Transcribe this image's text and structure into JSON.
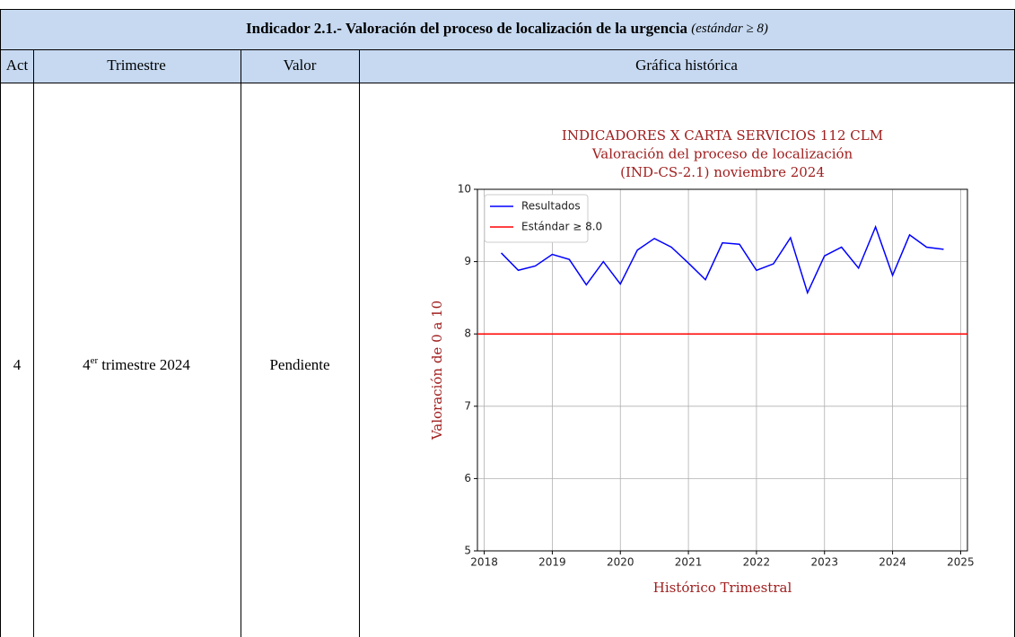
{
  "table": {
    "title": "Indicador 2.1.- Valoración del proceso de localización de la urgencia",
    "title_note": "(estándar ≥ 8)",
    "headers": [
      "Act",
      "Trimestre",
      "Valor",
      "Gráfica histórica"
    ],
    "row": {
      "act": "4",
      "quarter_num": "4",
      "quarter_sup": "er",
      "quarter_rest": "trimestre 2024",
      "valor": "Pendiente"
    }
  },
  "chart_data": {
    "type": "line",
    "title": [
      "INDICADORES X CARTA SERVICIOS 112 CLM",
      "Valoración del proceso de localización",
      "(IND-CS-2.1) noviembre 2024"
    ],
    "xlabel": "Histórico Trimestral",
    "ylabel": "Valoración de 0 a 10",
    "x": [
      2018.25,
      2018.5,
      2018.75,
      2019,
      2019.25,
      2019.5,
      2019.75,
      2020,
      2020.25,
      2020.5,
      2020.75,
      2021,
      2021.25,
      2021.5,
      2021.75,
      2022,
      2022.25,
      2022.5,
      2022.75,
      2023,
      2023.25,
      2023.5,
      2023.75,
      2024,
      2024.25,
      2024.5,
      2024.75
    ],
    "series": [
      {
        "name": "Resultados",
        "color": "#0000ff",
        "values": [
          9.12,
          8.88,
          8.94,
          9.1,
          9.03,
          8.68,
          9.0,
          8.69,
          9.16,
          9.32,
          9.2,
          8.98,
          8.75,
          9.26,
          9.24,
          8.88,
          8.97,
          9.33,
          8.57,
          9.08,
          9.2,
          8.91,
          9.48,
          8.81,
          9.37,
          9.2,
          9.17
        ]
      }
    ],
    "standard": {
      "name": "Estándar ≥ 8.0",
      "value": 8,
      "color": "#ff0000"
    },
    "xlim": [
      2017.9,
      2025.1
    ],
    "xticks": [
      2018,
      2019,
      2020,
      2021,
      2022,
      2023,
      2024,
      2025
    ],
    "ylim": [
      5,
      10
    ],
    "yticks": [
      5,
      6,
      7,
      8,
      9,
      10
    ],
    "grid": true,
    "legend": "upper left"
  }
}
